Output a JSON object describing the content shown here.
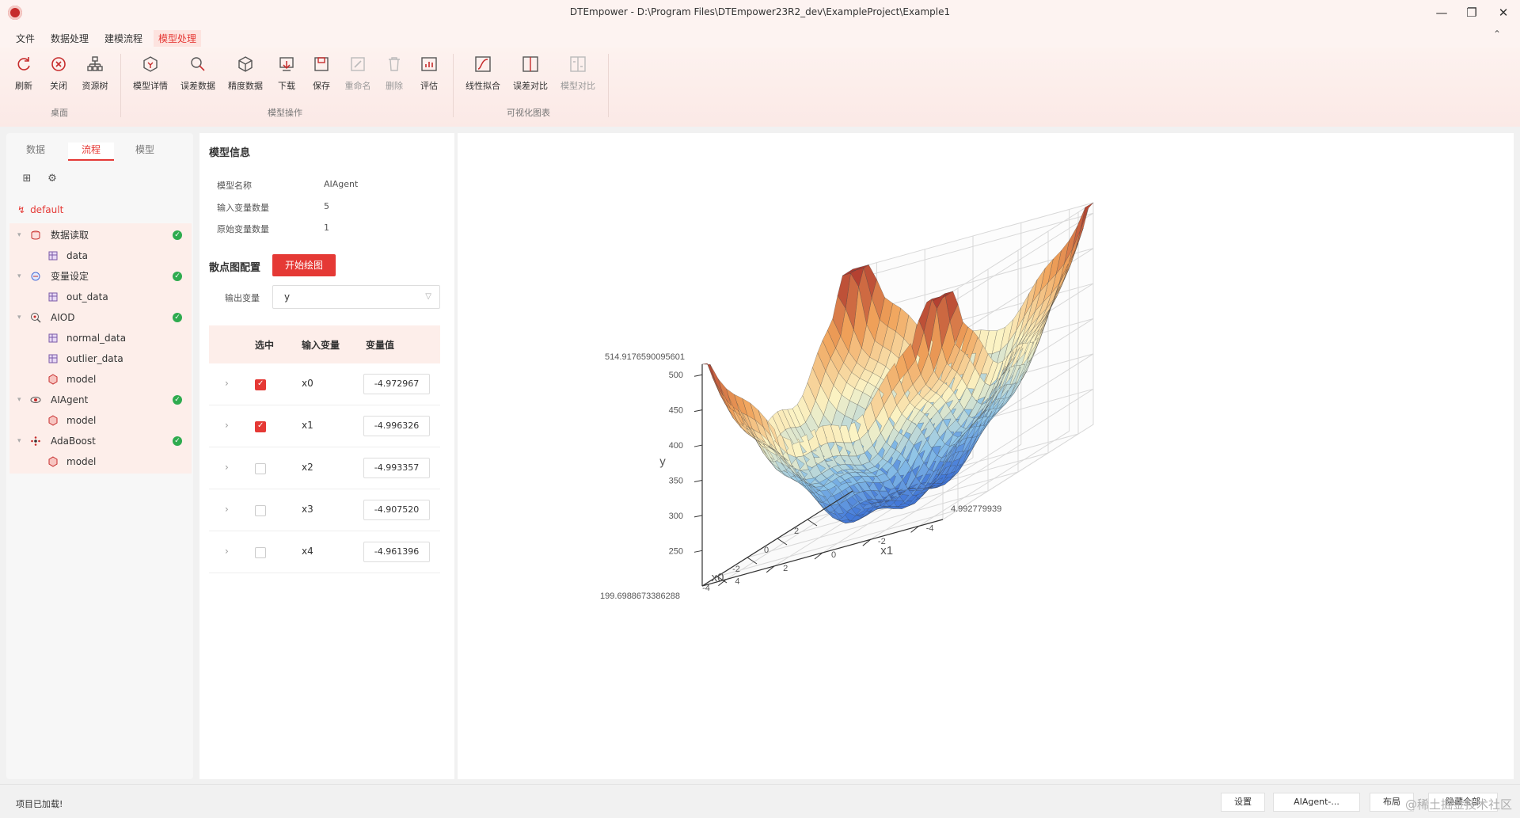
{
  "window": {
    "title": "DTEmpower - D:\\Program Files\\DTEmpower23R2_dev\\ExampleProject\\Example1",
    "controls": [
      "—",
      "❐",
      "✕"
    ]
  },
  "menu": {
    "items": [
      "文件",
      "数据处理",
      "建模流程",
      "模型处理"
    ],
    "active": "模型处理",
    "collapse": "⌃"
  },
  "ribbon": {
    "groups": [
      {
        "label": "桌面",
        "buttons": [
          {
            "label": "刷新",
            "icon": "refresh-icon"
          },
          {
            "label": "关闭",
            "icon": "close-circle-icon"
          },
          {
            "label": "资源树",
            "icon": "resource-tree-icon"
          }
        ]
      },
      {
        "label": "模型操作",
        "buttons": [
          {
            "label": "模型详情",
            "icon": "model-detail-icon"
          },
          {
            "label": "误差数据",
            "icon": "error-data-icon"
          },
          {
            "label": "精度数据",
            "icon": "precision-data-icon"
          },
          {
            "label": "下载",
            "icon": "download-icon"
          },
          {
            "label": "保存",
            "icon": "save-icon"
          },
          {
            "label": "重命名",
            "icon": "rename-icon",
            "disabled": true
          },
          {
            "label": "删除",
            "icon": "delete-icon",
            "disabled": true
          },
          {
            "label": "评估",
            "icon": "evaluate-icon"
          }
        ]
      },
      {
        "label": "可视化图表",
        "buttons": [
          {
            "label": "线性拟合",
            "icon": "linear-fit-icon"
          },
          {
            "label": "误差对比",
            "icon": "error-compare-icon"
          },
          {
            "label": "模型对比",
            "icon": "model-compare-icon",
            "disabled": true
          }
        ]
      }
    ]
  },
  "left_panel": {
    "tabs": [
      "数据",
      "流程",
      "模型"
    ],
    "active_tab": "流程",
    "root": "default",
    "tree": [
      {
        "label": "数据读取",
        "done": true,
        "children": [
          "data"
        ]
      },
      {
        "label": "变量设定",
        "done": true,
        "children": [
          "out_data"
        ]
      },
      {
        "label": "AIOD",
        "done": true,
        "children": [
          "normal_data",
          "outlier_data",
          "model"
        ]
      },
      {
        "label": "AIAgent",
        "done": true,
        "children": [
          "model"
        ]
      },
      {
        "label": "AdaBoost",
        "done": true,
        "children": [
          "model"
        ]
      }
    ]
  },
  "model_info": {
    "title": "模型信息",
    "fields": [
      {
        "key": "模型名称",
        "value": "AIAgent"
      },
      {
        "key": "输入变量数量",
        "value": "5"
      },
      {
        "key": "原始变量数量",
        "value": "1"
      }
    ]
  },
  "scatter_config": {
    "title": "散点图配置",
    "plot_button": "开始绘图",
    "output_label": "输出变量",
    "output_value": "y",
    "headers": [
      "选中",
      "输入变量",
      "变量值"
    ],
    "rows": [
      {
        "var": "x0",
        "checked": true,
        "value": "-4.972967"
      },
      {
        "var": "x1",
        "checked": true,
        "value": "-4.996326"
      },
      {
        "var": "x2",
        "checked": false,
        "value": "-4.993357"
      },
      {
        "var": "x3",
        "checked": false,
        "value": "-4.907520"
      },
      {
        "var": "x4",
        "checked": false,
        "value": "-4.961396"
      }
    ]
  },
  "chart_data": {
    "type": "surface",
    "title": "",
    "xlabel": "x0",
    "ylabel": "x1",
    "zlabel": "y",
    "x_ticks": [
      "-4",
      "-2",
      "0",
      "2"
    ],
    "y_ticks": [
      "-4",
      "-2",
      "0",
      "2",
      "4"
    ],
    "y_max_label": "4.992779939",
    "z_ticks": [
      "250",
      "300",
      "350",
      "400",
      "450",
      "500"
    ],
    "z_max_label": "514.9176590095601",
    "z_min_label": "199.6988673386288",
    "xlim": [
      -5,
      5
    ],
    "ylim": [
      -5,
      5
    ],
    "zlim": [
      199.7,
      514.9
    ],
    "colorscale": [
      "#3a6fd6",
      "#8cc3e8",
      "#fbf3c4",
      "#f0a25a",
      "#b03a2e"
    ]
  },
  "status": {
    "text": "项目已加载!",
    "buttons": [
      "设置",
      "AIAgent-...",
      "布局",
      "隐藏全部"
    ],
    "watermark": "@稀土掘金技术社区"
  }
}
